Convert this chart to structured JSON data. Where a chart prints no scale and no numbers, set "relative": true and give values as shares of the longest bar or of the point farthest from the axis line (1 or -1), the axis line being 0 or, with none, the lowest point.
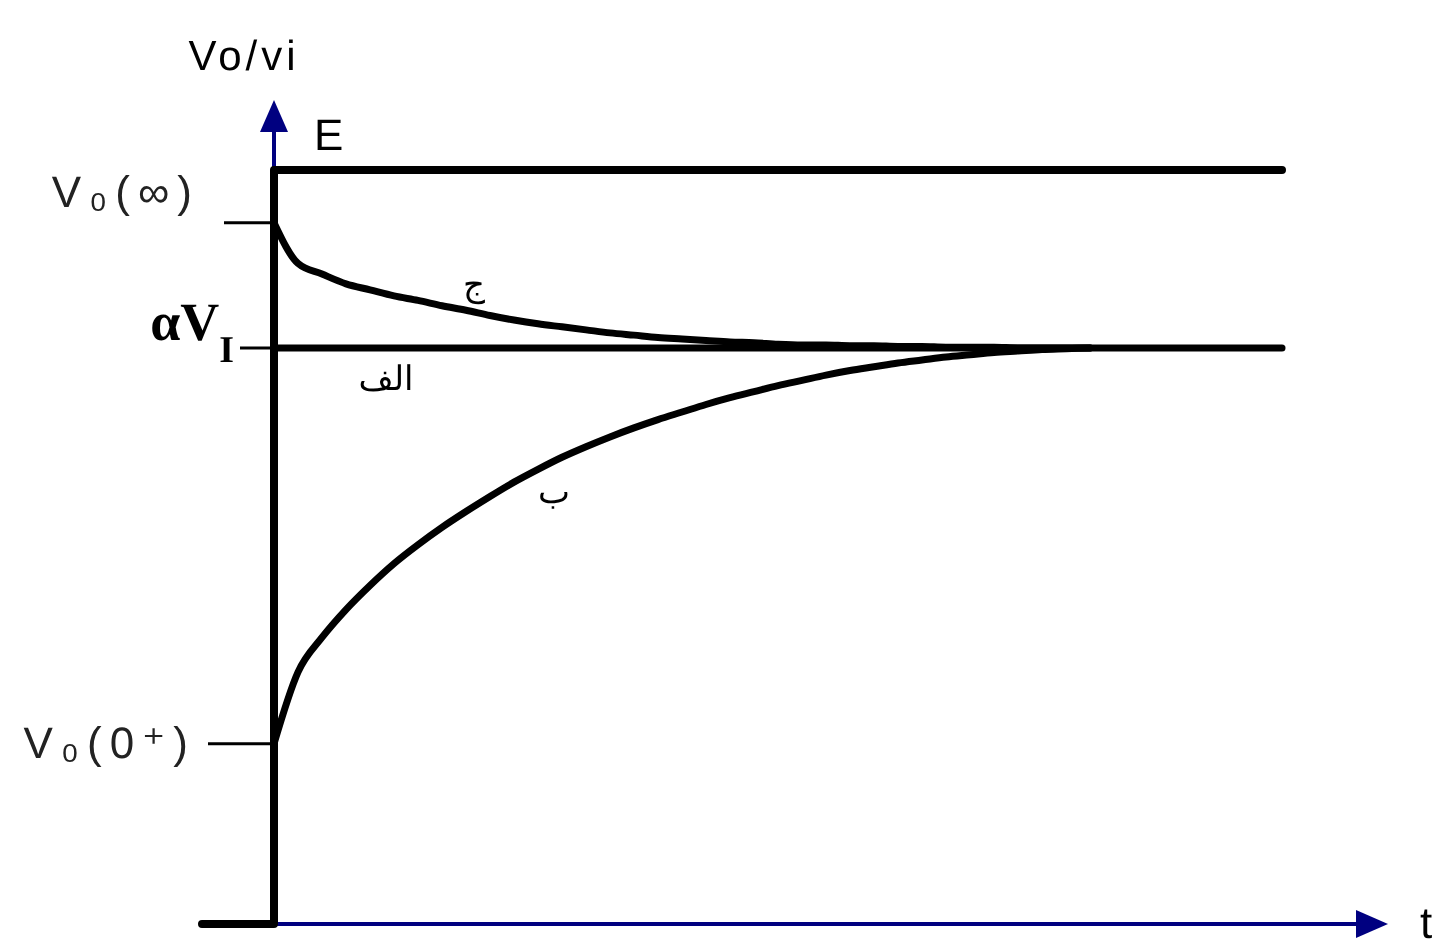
{
  "chart_data": {
    "type": "line",
    "relative": true,
    "xlabel": "t",
    "ylabel": "Vo/vi",
    "categories": [
      null,
      null,
      null,
      null,
      null,
      null,
      null,
      null,
      null,
      null,
      null,
      null,
      null,
      null,
      null,
      null,
      null,
      null,
      null,
      null,
      null,
      null,
      null,
      null,
      null,
      null,
      null,
      null,
      null,
      null,
      null,
      null,
      null,
      null,
      null,
      null,
      null,
      null,
      null,
      null,
      null,
      null,
      null,
      null,
      null,
      null
    ],
    "series": [
      {
        "name": "E",
        "type": "step",
        "color": "#000000",
        "values": [
          0,
          0,
          0,
          1,
          1,
          1,
          1,
          1,
          1,
          1,
          1,
          1,
          1,
          1,
          1,
          1,
          1,
          1,
          1,
          1,
          1,
          1,
          1,
          1,
          1,
          1,
          1,
          1,
          1,
          1,
          1,
          1,
          1,
          1,
          1,
          1,
          1,
          1,
          1,
          1,
          1,
          1,
          1,
          1,
          1,
          1
        ]
      },
      {
        "name": "ج",
        "color": "#000000",
        "values": [
          null,
          null,
          null,
          0.93,
          0.876,
          0.862,
          0.849,
          0.841,
          0.833,
          0.827,
          0.82,
          0.814,
          0.807,
          0.801,
          0.796,
          0.792,
          0.788,
          0.784,
          0.781,
          0.778,
          0.776,
          0.774,
          0.772,
          0.771,
          0.769,
          0.768,
          0.768,
          0.767,
          0.767,
          0.766,
          0.766,
          0.765,
          0.765,
          0.765,
          0.764,
          0.764,
          0.764,
          0.764,
          null,
          null,
          null,
          null,
          null,
          null,
          null,
          null
        ]
      },
      {
        "name": "الف",
        "color": "#000000",
        "values": [
          null,
          null,
          null,
          0.764,
          0.764,
          0.764,
          0.764,
          0.764,
          0.764,
          0.764,
          0.764,
          0.764,
          0.764,
          0.764,
          0.764,
          0.764,
          0.764,
          0.764,
          0.764,
          0.764,
          0.764,
          0.764,
          0.764,
          0.764,
          0.764,
          0.764,
          0.764,
          0.764,
          0.764,
          0.764,
          0.764,
          0.764,
          0.764,
          0.764,
          0.764,
          0.764,
          0.764,
          0.764,
          0.764,
          0.764,
          0.764,
          0.764,
          0.764,
          0.764,
          0.764,
          0.764
        ]
      },
      {
        "name": "ب",
        "color": "#000000",
        "values": [
          null,
          null,
          null,
          0.239,
          0.334,
          0.38,
          0.417,
          0.449,
          0.478,
          0.503,
          0.526,
          0.547,
          0.567,
          0.586,
          0.603,
          0.619,
          0.633,
          0.646,
          0.658,
          0.669,
          0.679,
          0.689,
          0.698,
          0.706,
          0.714,
          0.721,
          0.728,
          0.734,
          0.739,
          0.744,
          0.748,
          0.752,
          0.755,
          0.758,
          0.76,
          0.762,
          0.763,
          0.764,
          null,
          null,
          null,
          null,
          null,
          null,
          null,
          null
        ]
      }
    ],
    "annotations": [
      "V₀(∞)",
      "αV$_{I}$",
      "V₀(0⁺)"
    ]
  }
}
